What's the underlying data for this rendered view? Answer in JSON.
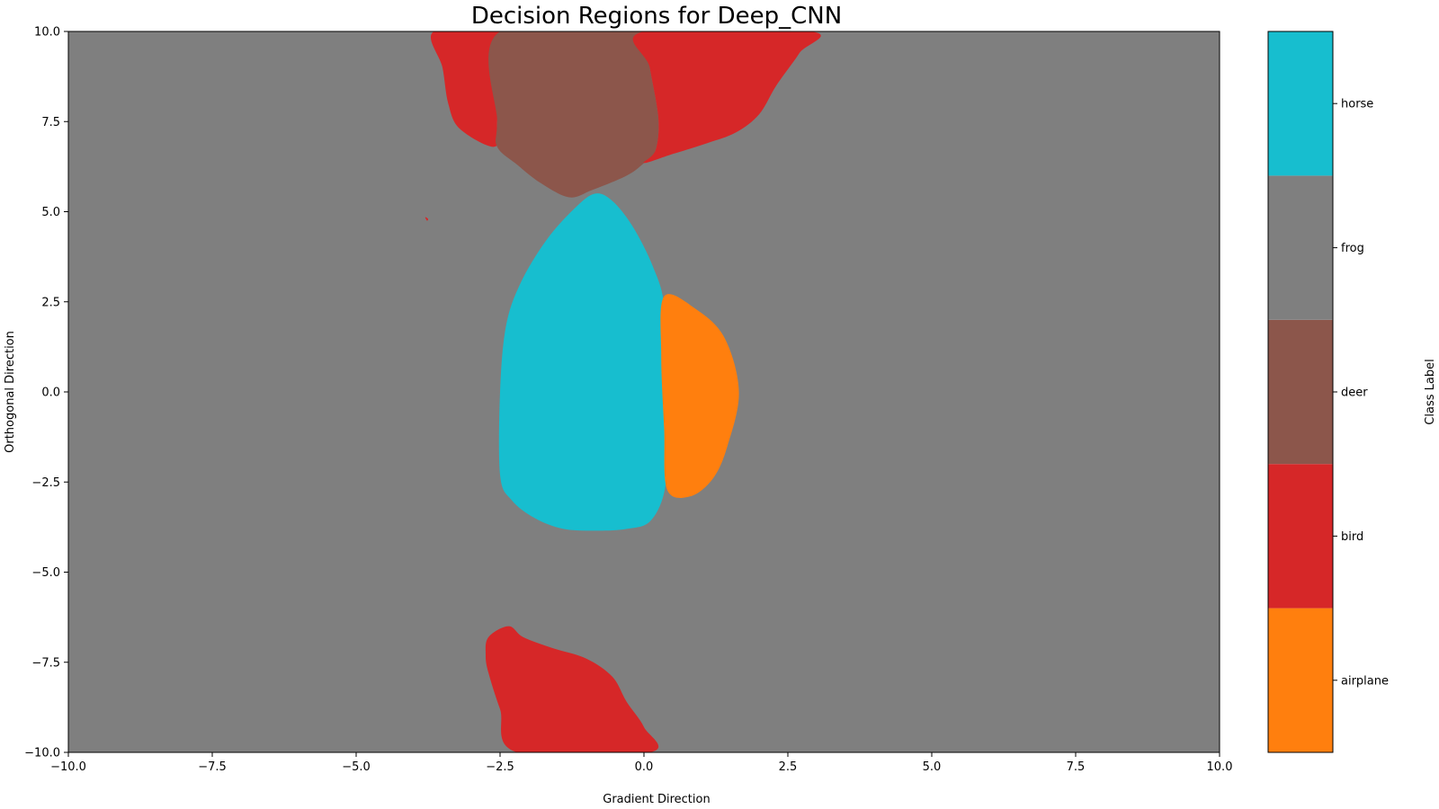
{
  "chart_data": {
    "type": "heatmap",
    "title": "Decision Regions for Deep_CNN",
    "xlabel": "Gradient Direction",
    "ylabel": "Orthogonal Direction",
    "xlim": [
      -10,
      10
    ],
    "ylim": [
      -10,
      10
    ],
    "xticks": [
      "−10.0",
      "−7.5",
      "−5.0",
      "−2.5",
      "0.0",
      "2.5",
      "5.0",
      "7.5",
      "10.0"
    ],
    "yticks": [
      "−10.0",
      "−7.5",
      "−5.0",
      "−2.5",
      "0.0",
      "2.5",
      "5.0",
      "7.5",
      "10.0"
    ],
    "grid": false,
    "background_class": "frog",
    "colorbar": {
      "label": "Class Label",
      "classes": [
        {
          "name": "airplane",
          "color": "#ff7f0e"
        },
        {
          "name": "bird",
          "color": "#d62728"
        },
        {
          "name": "deer",
          "color": "#8c564b"
        },
        {
          "name": "frog",
          "color": "#7f7f7f"
        },
        {
          "name": "horse",
          "color": "#17becf"
        }
      ]
    },
    "regions": [
      {
        "class": "bird",
        "color": "#d62728",
        "points": [
          [
            -3.65,
            10
          ],
          [
            -3.5,
            9
          ],
          [
            -3.4,
            8
          ],
          [
            -3.2,
            7.3
          ],
          [
            -2.6,
            6.8
          ],
          [
            -2.55,
            7.5
          ],
          [
            -2.5,
            10
          ]
        ]
      },
      {
        "class": "deer",
        "color": "#8c564b",
        "points": [
          [
            -2.5,
            10
          ],
          [
            -2.55,
            7.5
          ],
          [
            -2.55,
            6.8
          ],
          [
            -2.2,
            6.3
          ],
          [
            -1.8,
            5.8
          ],
          [
            -1.3,
            5.4
          ],
          [
            -0.9,
            5.6
          ],
          [
            -0.3,
            6
          ],
          [
            0,
            6.35
          ],
          [
            0.2,
            6.7
          ],
          [
            0.25,
            7.6
          ],
          [
            0.1,
            9
          ],
          [
            0,
            10
          ]
        ]
      },
      {
        "class": "bird",
        "color": "#d62728",
        "points": [
          [
            0,
            10
          ],
          [
            0.1,
            9
          ],
          [
            0.25,
            7.6
          ],
          [
            0.2,
            6.7
          ],
          [
            0,
            6.35
          ],
          [
            0.5,
            6.6
          ],
          [
            1.1,
            6.9
          ],
          [
            1.6,
            7.2
          ],
          [
            2,
            7.7
          ],
          [
            2.3,
            8.5
          ],
          [
            2.7,
            9.4
          ],
          [
            2.9,
            10
          ]
        ]
      },
      {
        "class": "horse",
        "color": "#17becf",
        "points": [
          [
            -1.2,
            5.1
          ],
          [
            -0.85,
            5.5
          ],
          [
            -0.55,
            5.3
          ],
          [
            -0.2,
            4.6
          ],
          [
            0.15,
            3.5
          ],
          [
            0.35,
            2.4
          ],
          [
            0.35,
            0.5
          ],
          [
            0.4,
            -1.5
          ],
          [
            0.35,
            -2.8
          ],
          [
            0.1,
            -3.6
          ],
          [
            -0.3,
            -3.8
          ],
          [
            -0.8,
            -3.85
          ],
          [
            -1.4,
            -3.8
          ],
          [
            -1.9,
            -3.5
          ],
          [
            -2.3,
            -3
          ],
          [
            -2.5,
            -2.3
          ],
          [
            -2.5,
            0
          ],
          [
            -2.4,
            1.8
          ],
          [
            -2.15,
            3
          ],
          [
            -1.7,
            4.2
          ]
        ]
      },
      {
        "class": "airplane",
        "color": "#ff7f0e",
        "points": [
          [
            0.35,
            2.65
          ],
          [
            0.9,
            2.3
          ],
          [
            1.4,
            1.5
          ],
          [
            1.65,
            0
          ],
          [
            1.45,
            -1.5
          ],
          [
            1.2,
            -2.4
          ],
          [
            0.8,
            -2.9
          ],
          [
            0.4,
            -2.7
          ],
          [
            0.35,
            -1
          ],
          [
            0.3,
            1
          ]
        ]
      },
      {
        "class": "bird",
        "color": "#d62728",
        "points": [
          [
            -2.7,
            -6.8
          ],
          [
            -2.35,
            -6.5
          ],
          [
            -2.1,
            -6.8
          ],
          [
            -1.6,
            -7.1
          ],
          [
            -1,
            -7.4
          ],
          [
            -0.55,
            -7.9
          ],
          [
            -0.3,
            -8.6
          ],
          [
            0,
            -9.3
          ],
          [
            0.1,
            -10
          ],
          [
            -2.2,
            -10
          ],
          [
            -2.5,
            -8.8
          ],
          [
            -2.7,
            -7.8
          ],
          [
            -2.75,
            -7.3
          ]
        ]
      },
      {
        "class": "bird",
        "color": "#d62728",
        "points": [
          [
            -3.8,
            4.85
          ],
          [
            -3.75,
            4.8
          ],
          [
            -3.77,
            4.75
          ]
        ]
      }
    ]
  }
}
